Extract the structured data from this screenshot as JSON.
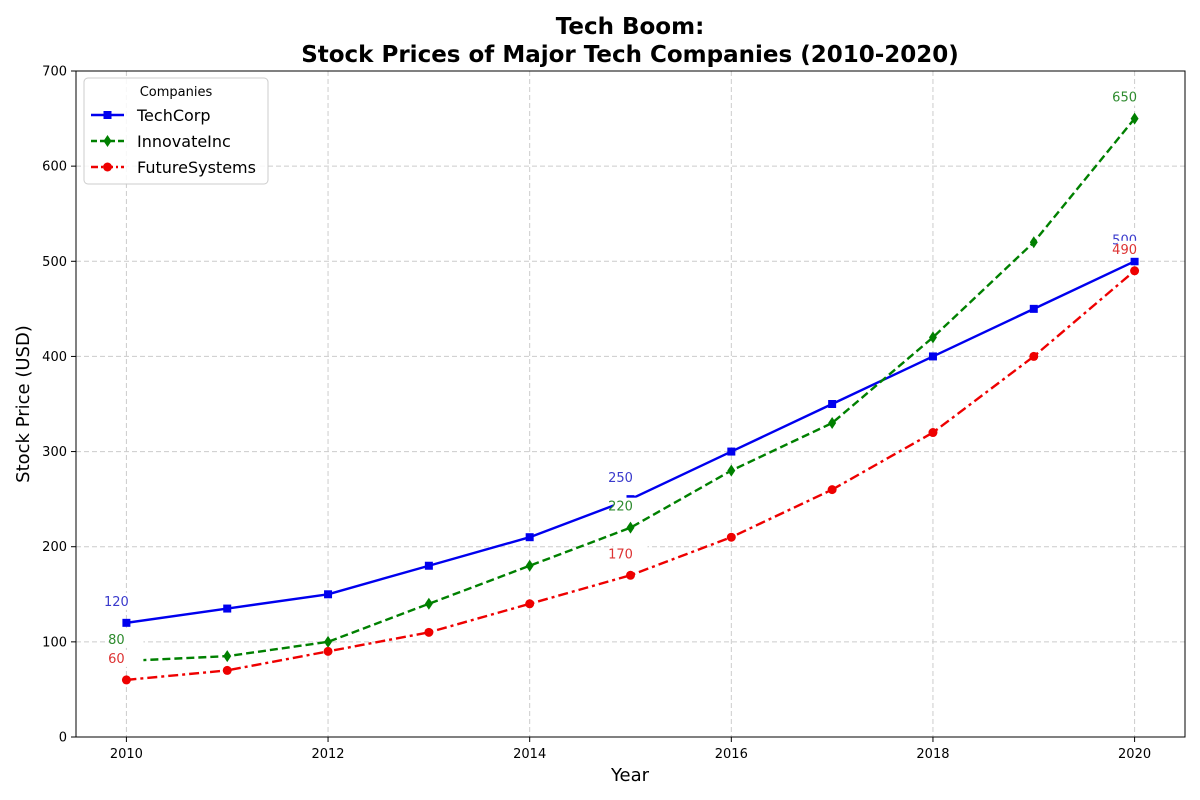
{
  "chart_data": {
    "type": "line",
    "title_line1": "Tech Boom:",
    "title_line2": "Stock Prices of Major Tech Companies (2010-2020)",
    "xlabel": "Year",
    "ylabel": "Stock Price (USD)",
    "x": [
      2010,
      2011,
      2012,
      2013,
      2014,
      2015,
      2016,
      2017,
      2018,
      2019,
      2020
    ],
    "xticks": [
      "2010",
      "2012",
      "2014",
      "2016",
      "2018",
      "2020"
    ],
    "xlim": [
      2009.5,
      2020.5
    ],
    "ylim": [
      0,
      700
    ],
    "yticks": [
      "0",
      "100",
      "200",
      "300",
      "400",
      "500",
      "600",
      "700"
    ],
    "grid": true,
    "legend": {
      "title": "Companies",
      "placement": "top-left"
    },
    "series": [
      {
        "name": "TechCorp",
        "color": "#0000ee",
        "label_color": "#3a3acc",
        "line_style": "solid",
        "marker": "square",
        "values": [
          120,
          135,
          150,
          180,
          210,
          250,
          300,
          350,
          400,
          450,
          500
        ],
        "labeled_points": [
          {
            "index": 0,
            "text": "120"
          },
          {
            "index": 5,
            "text": "250"
          },
          {
            "index": 10,
            "text": "500"
          }
        ]
      },
      {
        "name": "InnovateInc",
        "color": "#008000",
        "label_color": "#2e8b2e",
        "line_style": "dashed",
        "marker": "diamond",
        "values": [
          80,
          85,
          100,
          140,
          180,
          220,
          280,
          330,
          420,
          520,
          650
        ],
        "labeled_points": [
          {
            "index": 0,
            "text": "80"
          },
          {
            "index": 5,
            "text": "220"
          },
          {
            "index": 10,
            "text": "650"
          }
        ]
      },
      {
        "name": "FutureSystems",
        "color": "#ee0000",
        "label_color": "#dd3333",
        "line_style": "dashdot",
        "marker": "circle",
        "values": [
          60,
          70,
          90,
          110,
          140,
          170,
          210,
          260,
          320,
          400,
          490
        ],
        "labeled_points": [
          {
            "index": 0,
            "text": "60"
          },
          {
            "index": 5,
            "text": "170"
          },
          {
            "index": 10,
            "text": "490"
          }
        ]
      }
    ]
  }
}
